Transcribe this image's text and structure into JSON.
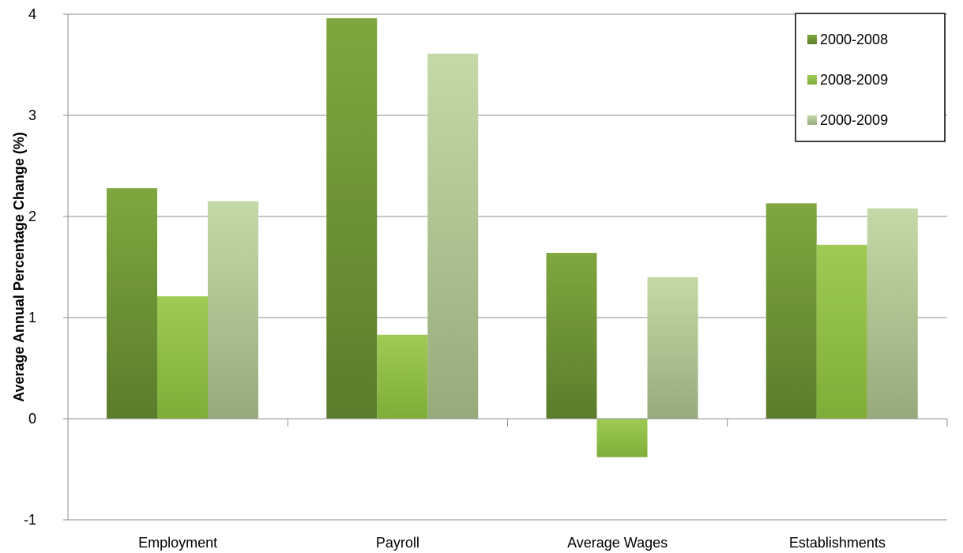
{
  "chart_data": {
    "type": "bar",
    "title": "",
    "xlabel": "",
    "ylabel": "Average Annual Percentage Change (%)",
    "categories": [
      "Employment",
      "Payroll",
      "Average Wages",
      "Establishments"
    ],
    "series": [
      {
        "name": "2000-2008",
        "values": [
          2.28,
          3.96,
          1.64,
          2.13
        ],
        "color": "#6f9438"
      },
      {
        "name": "2008-2009",
        "values": [
          1.21,
          0.83,
          -0.38,
          1.72
        ],
        "color": "#93c04a"
      },
      {
        "name": "2000-2009",
        "values": [
          2.15,
          3.61,
          1.4,
          2.08
        ],
        "color": "#b4cb92"
      }
    ],
    "ylim": [
      -1,
      4
    ],
    "yticks": [
      -1,
      0,
      1,
      2,
      3,
      4
    ],
    "ytick_labels": [
      "-1",
      "0",
      "1",
      "2",
      "3",
      "4"
    ],
    "grid": true,
    "legend_position": "top-right"
  }
}
